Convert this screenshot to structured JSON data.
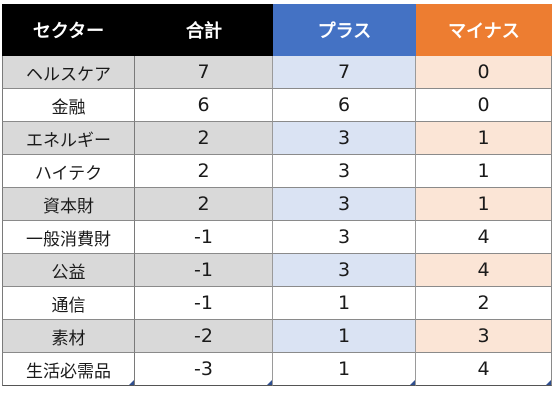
{
  "table": {
    "headers": [
      "セクター",
      "合計",
      "プラス",
      "マイナス"
    ],
    "header_colors": {
      "sector": "#000000",
      "total": "#000000",
      "plus": "#4472c4",
      "minus": "#ed7d31"
    },
    "rows": [
      {
        "sector": "ヘルスケア",
        "total": "7",
        "plus": "7",
        "minus": "0"
      },
      {
        "sector": "金融",
        "total": "6",
        "plus": "6",
        "minus": "0"
      },
      {
        "sector": "エネルギー",
        "total": "2",
        "plus": "3",
        "minus": "1"
      },
      {
        "sector": "ハイテク",
        "total": "2",
        "plus": "3",
        "minus": "1"
      },
      {
        "sector": "資本財",
        "total": "2",
        "plus": "3",
        "minus": "1"
      },
      {
        "sector": "一般消費財",
        "total": "-1",
        "plus": "3",
        "minus": "4"
      },
      {
        "sector": "公益",
        "total": "-1",
        "plus": "3",
        "minus": "4"
      },
      {
        "sector": "通信",
        "total": "-1",
        "plus": "1",
        "minus": "2"
      },
      {
        "sector": "素材",
        "total": "-2",
        "plus": "1",
        "minus": "3"
      },
      {
        "sector": "生活必需品",
        "total": "-3",
        "plus": "1",
        "minus": "4"
      }
    ]
  }
}
